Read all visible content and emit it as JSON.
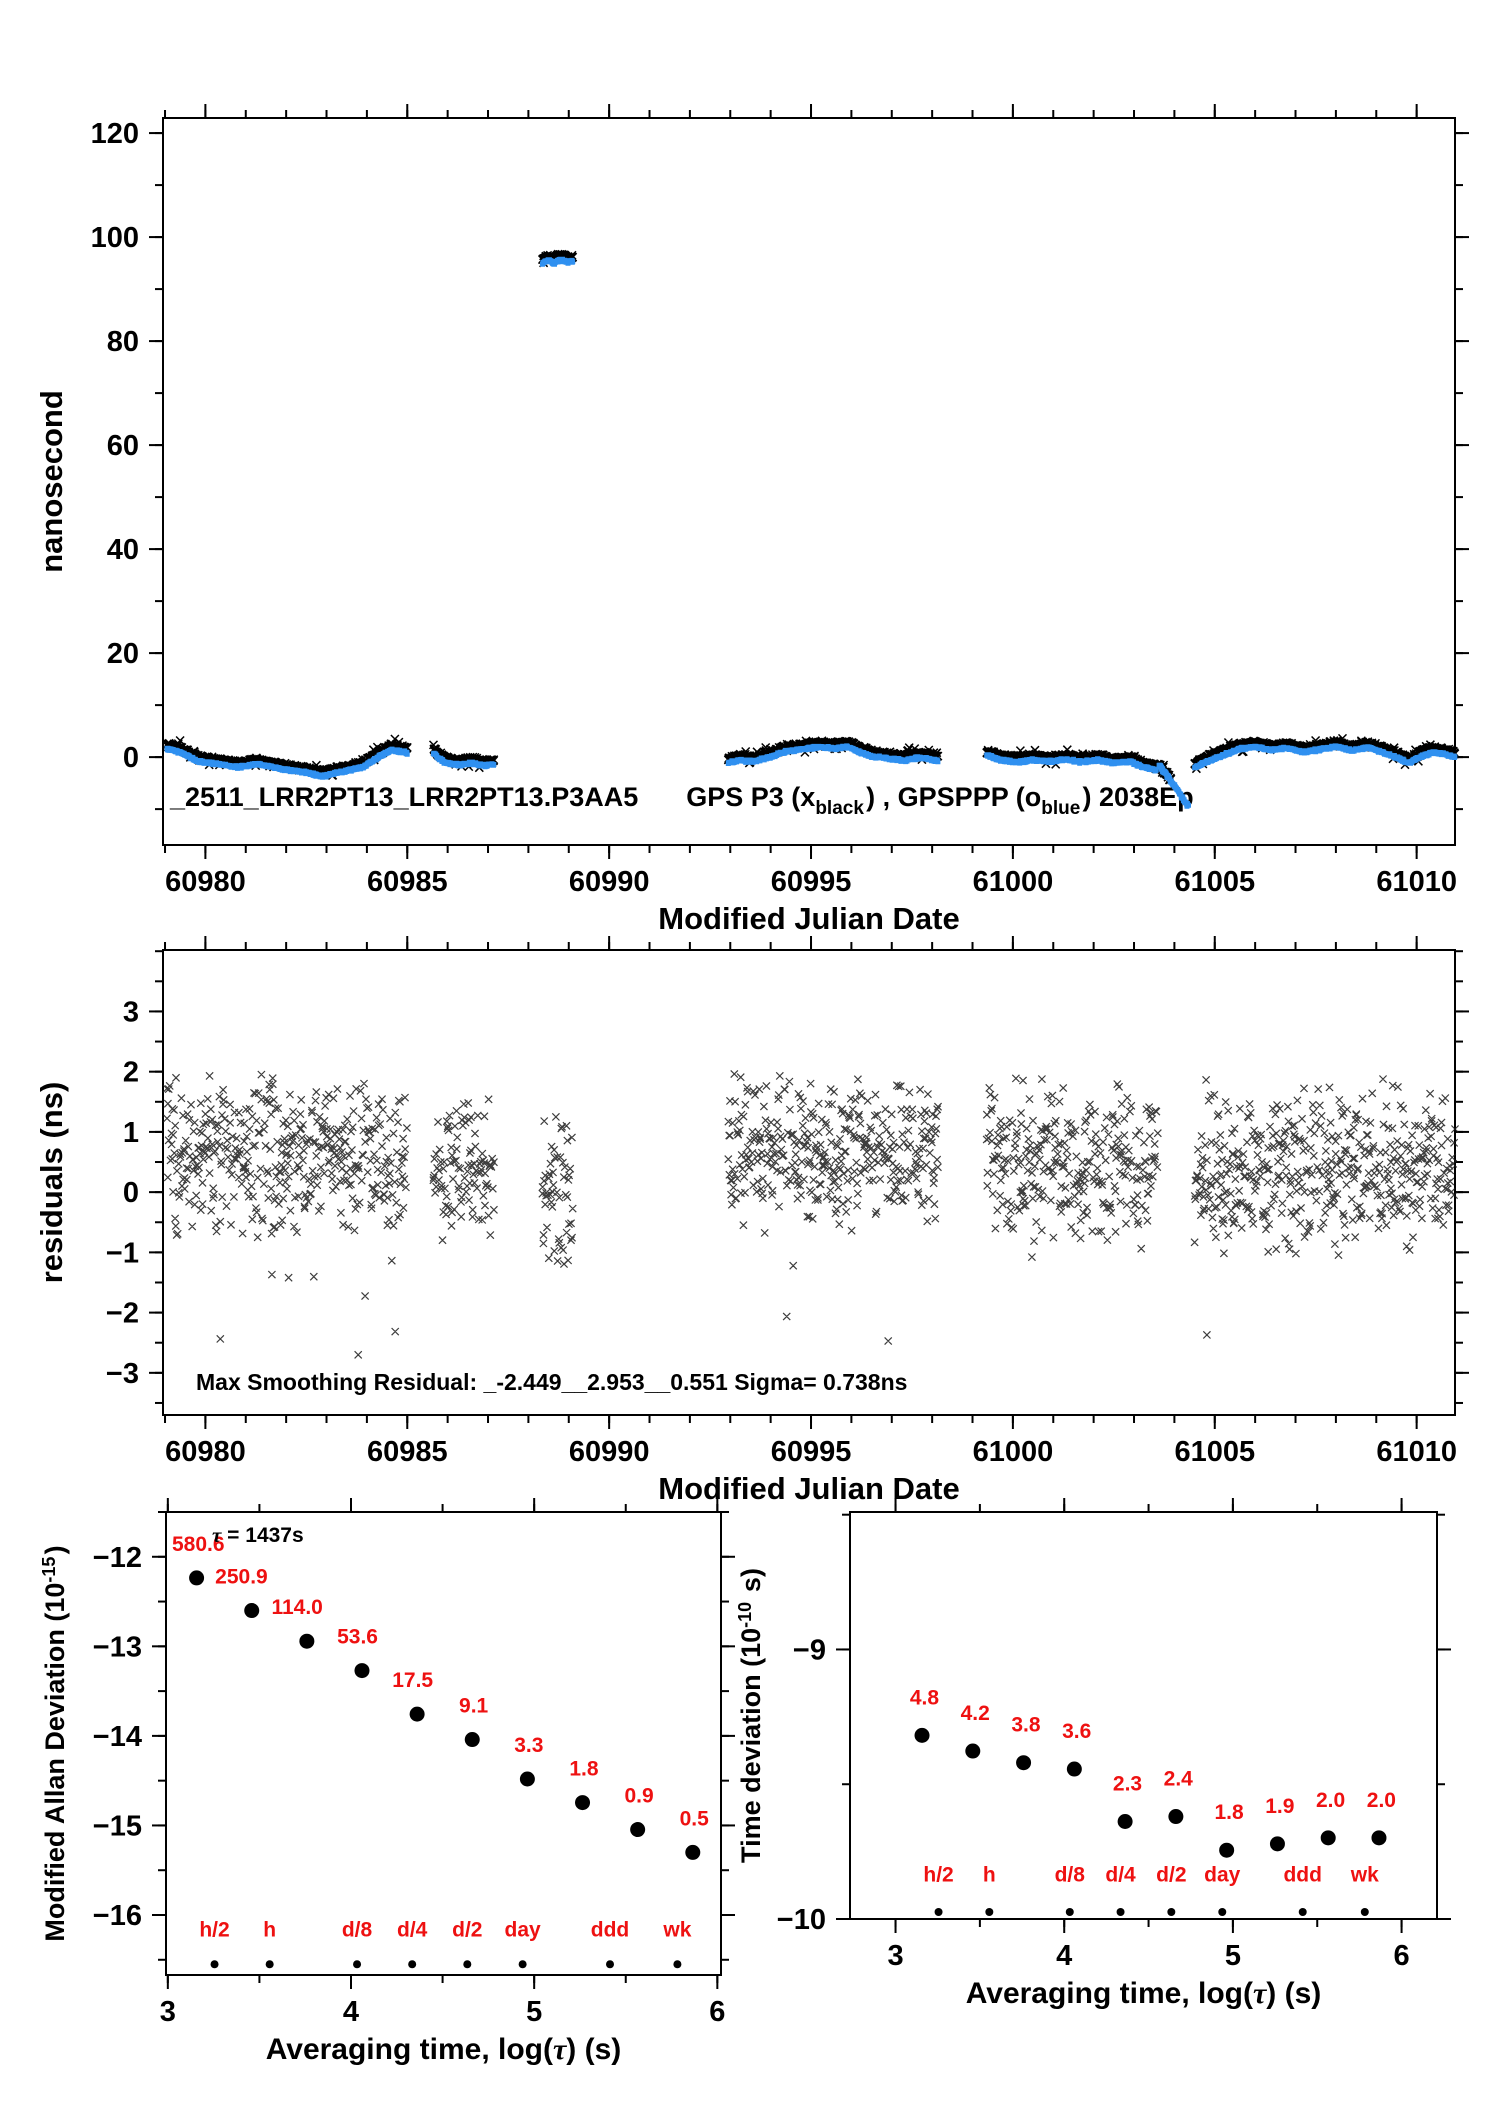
{
  "colors": {
    "black": "#000000",
    "blue": "#2f90f0",
    "red": "#ee1111",
    "residual": "#1b1b1b"
  },
  "chart_data": [
    {
      "id": "phase",
      "type": "scatter",
      "title_parts": [
        {
          "t": "_2511_LRR2PT13_LRR2PT13.P3AA5"
        },
        {
          "t": "GPS P3 (x",
          "gap": 48
        },
        {
          "t": "black",
          "sub": true
        },
        {
          "t": ") ,  GPSPPP (o"
        },
        {
          "t": "blue",
          "sub": true
        },
        {
          "t": ")  2038Ep"
        }
      ],
      "xlabel": "Modified Julian Date",
      "ylabel": "nanosecond",
      "xlim": [
        60978.95,
        61010.95
      ],
      "ylim": [
        -16.9,
        122.9
      ],
      "xticks": [
        {
          "v": 60980,
          "t": "60980"
        },
        {
          "v": 60985,
          "t": "60985"
        },
        {
          "v": 60990,
          "t": "60990"
        },
        {
          "v": 60995,
          "t": "60995"
        },
        {
          "v": 61000,
          "t": "61000"
        },
        {
          "v": 61005,
          "t": "61005"
        },
        {
          "v": 61010,
          "t": "61010"
        }
      ],
      "yticks": [
        {
          "v": 0,
          "t": "0"
        },
        {
          "v": 20,
          "t": "20"
        },
        {
          "v": 40,
          "t": "40"
        },
        {
          "v": 60,
          "t": "60"
        },
        {
          "v": 80,
          "t": "80"
        },
        {
          "v": 100,
          "t": "100"
        },
        {
          "v": 120,
          "t": "120"
        }
      ],
      "x_minor_step": 1,
      "y_minor_step": 10,
      "series": [
        {
          "name": "GPS P3",
          "marker": "x",
          "color": "black",
          "offset": 0.55,
          "jitter": 0.5
        },
        {
          "name": "GPSPPP",
          "marker": "square",
          "color": "blue",
          "offset": -0.25,
          "jitter": 0.3
        }
      ],
      "sample_step": 0.009,
      "segments": [
        {
          "points": [
            [
              60979.05,
              1.9
            ],
            [
              60979.4,
              1.1
            ],
            [
              60979.8,
              -0.5
            ],
            [
              60980.3,
              -1.1
            ],
            [
              60980.8,
              -1.7
            ],
            [
              60981.3,
              -1.1
            ],
            [
              60981.9,
              -2.1
            ],
            [
              60982.5,
              -2.7
            ],
            [
              60982.9,
              -3.5
            ],
            [
              60983.4,
              -2.5
            ],
            [
              60983.9,
              -1.7
            ],
            [
              60984.3,
              0.3
            ],
            [
              60984.6,
              1.6
            ],
            [
              60985.0,
              1.1
            ]
          ]
        },
        {
          "points": [
            [
              60985.65,
              1.1
            ],
            [
              60985.78,
              0.1
            ],
            [
              60985.95,
              -0.9
            ],
            [
              60986.3,
              -1.3
            ],
            [
              60986.6,
              -0.9
            ],
            [
              60986.9,
              -1.4
            ],
            [
              60987.15,
              -1.1
            ]
          ]
        },
        {
          "points": [
            [
              60988.35,
              95.2
            ],
            [
              60988.5,
              95.9
            ],
            [
              60988.62,
              95.1
            ],
            [
              60988.78,
              96.0
            ],
            [
              60988.95,
              95.4
            ],
            [
              60989.1,
              95.6
            ]
          ]
        },
        {
          "points": [
            [
              60992.95,
              -0.9
            ],
            [
              60993.2,
              -0.4
            ],
            [
              60993.6,
              -0.6
            ],
            [
              60994.0,
              0.3
            ],
            [
              60994.4,
              1.4
            ],
            [
              60994.8,
              1.8
            ],
            [
              60995.2,
              2.2
            ],
            [
              60995.6,
              1.9
            ],
            [
              60995.9,
              2.3
            ],
            [
              60996.2,
              1.2
            ],
            [
              60996.5,
              0.4
            ],
            [
              60996.9,
              0.0
            ],
            [
              60997.3,
              -0.4
            ],
            [
              60997.7,
              0.2
            ],
            [
              60998.15,
              -0.5
            ]
          ]
        },
        {
          "points": [
            [
              60999.35,
              0.6
            ],
            [
              60999.7,
              -0.3
            ],
            [
              61000.1,
              -0.7
            ],
            [
              61000.5,
              -0.3
            ],
            [
              61000.9,
              -0.6
            ],
            [
              61001.3,
              -0.2
            ],
            [
              61001.7,
              -0.7
            ],
            [
              61002.1,
              -0.3
            ],
            [
              61002.5,
              -0.9
            ],
            [
              61002.9,
              -0.6
            ],
            [
              61003.2,
              -1.6
            ],
            [
              61003.55,
              -2.3
            ]
          ]
        },
        {
          "points": [
            [
              61003.58,
              -1.4
            ],
            [
              61003.92,
              -4.2
            ]
          ],
          "series": "black",
          "jitter": 0.7
        },
        {
          "points": [
            [
              61003.62,
              -1.6
            ],
            [
              61004.0,
              -5.5
            ],
            [
              61004.35,
              -9.5
            ]
          ],
          "series": "blue",
          "jitter": 0.4
        },
        {
          "points": [
            [
              61004.5,
              -1.8
            ],
            [
              61004.8,
              -0.6
            ],
            [
              61005.2,
              0.6
            ],
            [
              61005.6,
              1.8
            ],
            [
              61006.0,
              2.2
            ],
            [
              61006.4,
              1.6
            ],
            [
              61006.8,
              2.0
            ],
            [
              61007.2,
              1.2
            ],
            [
              61007.6,
              1.7
            ],
            [
              61008.0,
              2.3
            ],
            [
              61008.4,
              1.5
            ],
            [
              61008.8,
              2.1
            ],
            [
              61009.2,
              1.0
            ],
            [
              61009.5,
              0.2
            ],
            [
              61009.8,
              -0.9
            ],
            [
              61010.1,
              0.3
            ],
            [
              61010.4,
              1.2
            ],
            [
              61010.7,
              0.8
            ],
            [
              61010.95,
              0.2
            ]
          ]
        }
      ]
    },
    {
      "id": "residuals",
      "type": "scatter",
      "xlabel": "Modified Julian Date",
      "ylabel": "residuals (ns)",
      "note": "Max Smoothing Residual: _-2.449__2.953__0.551  Sigma= 0.738ns",
      "xlim": [
        60978.95,
        61010.95
      ],
      "ylim": [
        -3.7,
        4.02
      ],
      "xticks": [
        {
          "v": 60980,
          "t": "60980"
        },
        {
          "v": 60985,
          "t": "60985"
        },
        {
          "v": 60990,
          "t": "60990"
        },
        {
          "v": 60995,
          "t": "60995"
        },
        {
          "v": 61000,
          "t": "61000"
        },
        {
          "v": 61005,
          "t": "61005"
        },
        {
          "v": 61010,
          "t": "61010"
        }
      ],
      "yticks": [
        {
          "v": 3,
          "t": "3"
        },
        {
          "v": 2,
          "t": "2"
        },
        {
          "v": 1,
          "t": "1"
        },
        {
          "v": 0,
          "t": "0"
        },
        {
          "v": -1,
          "t": "−1"
        },
        {
          "v": -2,
          "t": "−2"
        },
        {
          "v": -3,
          "t": "−3"
        }
      ],
      "x_minor_step": 1,
      "y_minor_step": 0.5,
      "sample_step": 0.022,
      "segments": [
        {
          "x0": 60979.05,
          "x1": 60985.0,
          "mean": 0.6,
          "spread": 1.5
        },
        {
          "x0": 60985.65,
          "x1": 60987.15,
          "mean": 0.4,
          "spread": 1.3
        },
        {
          "x0": 60988.35,
          "x1": 60989.1,
          "mean": 0.1,
          "spread": 1.35
        },
        {
          "x0": 60992.95,
          "x1": 60998.15,
          "mean": 0.65,
          "spread": 1.45
        },
        {
          "x0": 60999.35,
          "x1": 61003.6,
          "mean": 0.5,
          "spread": 1.5
        },
        {
          "x0": 61004.5,
          "x1": 61010.95,
          "mean": 0.35,
          "spread": 1.6
        }
      ]
    },
    {
      "id": "mdev",
      "type": "scatter",
      "xlabel_parts": [
        {
          "t": "Averaging time, log("
        },
        {
          "t": "τ",
          "greek": true
        },
        {
          "t": ") (s)"
        }
      ],
      "ylabel_parts": [
        {
          "t": "Modified Allan Deviation (10"
        },
        {
          "t": "-15",
          "sup": true
        },
        {
          "t": ")"
        }
      ],
      "note_parts": [
        {
          "t": "τ",
          "greek": true
        },
        {
          "t": " = 1437s"
        }
      ],
      "xlim": [
        2.99,
        6.02
      ],
      "ylim": [
        -16.67,
        -11.5
      ],
      "xticks": [
        {
          "v": 3,
          "t": "3"
        },
        {
          "v": 4,
          "t": "4"
        },
        {
          "v": 5,
          "t": "5"
        },
        {
          "v": 6,
          "t": "6"
        }
      ],
      "yticks": [
        {
          "v": -12,
          "t": "−12"
        },
        {
          "v": -13,
          "t": "−13"
        },
        {
          "v": -14,
          "t": "−14"
        },
        {
          "v": -15,
          "t": "−15"
        },
        {
          "v": -16,
          "t": "−16"
        }
      ],
      "x_minor_step": 0.5,
      "y_minor_step": 0.5,
      "x": [
        3.157,
        3.458,
        3.759,
        4.06,
        4.361,
        4.662,
        4.963,
        5.264,
        5.565,
        5.866
      ],
      "values": [
        580.6,
        250.9,
        114.0,
        53.6,
        17.5,
        9.1,
        3.3,
        1.8,
        0.9,
        0.5
      ],
      "value_labels": [
        "580.6",
        "250.9",
        "114.0",
        "53.6",
        "17.5",
        "9.1",
        "3.3",
        "1.8",
        "0.9",
        "0.5"
      ],
      "value_scale_exp": -15,
      "period_markers": [
        {
          "label": "h/2",
          "x": 3.255
        },
        {
          "label": "h",
          "x": 3.556
        },
        {
          "label": "d/8",
          "x": 4.033
        },
        {
          "label": "d/4",
          "x": 4.334
        },
        {
          "label": "d/2",
          "x": 4.635
        },
        {
          "label": "day",
          "x": 4.937
        },
        {
          "label": "ddd",
          "x": 5.414
        },
        {
          "label": "wk",
          "x": 5.782
        }
      ]
    },
    {
      "id": "tdev",
      "type": "scatter",
      "xlabel_parts": [
        {
          "t": "Averaging time, log("
        },
        {
          "t": "τ",
          "greek": true
        },
        {
          "t": ") (s)"
        }
      ],
      "ylabel_parts": [
        {
          "t": "Time deviation (10"
        },
        {
          "t": "-10",
          "sup": true
        },
        {
          "t": " s)"
        }
      ],
      "xlim": [
        2.73,
        6.21
      ],
      "ylim": [
        -10.0,
        -8.49
      ],
      "xticks": [
        {
          "v": 3,
          "t": "3"
        },
        {
          "v": 4,
          "t": "4"
        },
        {
          "v": 5,
          "t": "5"
        },
        {
          "v": 6,
          "t": "6"
        }
      ],
      "yticks": [
        {
          "v": -9,
          "t": "−9"
        },
        {
          "v": -10,
          "t": "−10"
        }
      ],
      "x_minor_step": 0.5,
      "y_minor_step": 0.5,
      "x": [
        3.157,
        3.458,
        3.759,
        4.06,
        4.361,
        4.662,
        4.963,
        5.264,
        5.565,
        5.866
      ],
      "values": [
        4.8,
        4.2,
        3.8,
        3.6,
        2.3,
        2.4,
        1.8,
        1.9,
        2.0,
        2.0
      ],
      "value_labels": [
        "4.8",
        "4.2",
        "3.8",
        "3.6",
        "2.3",
        "2.4",
        "1.8",
        "1.9",
        "2.0",
        "2.0"
      ],
      "value_scale_exp": -10,
      "period_markers": [
        {
          "label": "h/2",
          "x": 3.255
        },
        {
          "label": "h",
          "x": 3.556
        },
        {
          "label": "d/8",
          "x": 4.033
        },
        {
          "label": "d/4",
          "x": 4.334
        },
        {
          "label": "d/2",
          "x": 4.635
        },
        {
          "label": "day",
          "x": 4.937
        },
        {
          "label": "ddd",
          "x": 5.414
        },
        {
          "label": "wk",
          "x": 5.782
        }
      ]
    }
  ]
}
